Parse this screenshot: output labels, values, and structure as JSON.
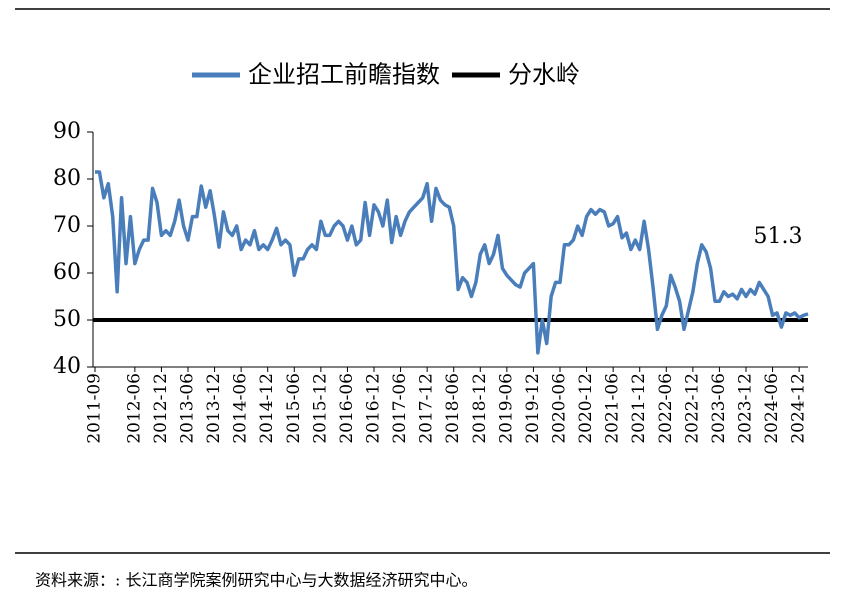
{
  "chart_data": {
    "type": "line",
    "legend": "top",
    "categories": [
      "2011-09",
      null,
      null,
      null,
      null,
      null,
      null,
      null,
      null,
      "2012-06",
      null,
      null,
      null,
      null,
      null,
      "2012-12",
      null,
      null,
      null,
      null,
      null,
      "2013-06",
      null,
      null,
      null,
      null,
      null,
      "2013-12",
      null,
      null,
      null,
      null,
      null,
      "2014-06",
      null,
      null,
      null,
      null,
      null,
      "2014-12",
      null,
      null,
      null,
      null,
      null,
      "2015-06",
      null,
      null,
      null,
      null,
      null,
      "2015-12",
      null,
      null,
      null,
      null,
      null,
      "2016-06",
      null,
      null,
      null,
      null,
      null,
      "2016-12",
      null,
      null,
      null,
      null,
      null,
      "2017-06",
      null,
      null,
      null,
      null,
      null,
      "2017-12",
      null,
      null,
      null,
      null,
      null,
      "2018-06",
      null,
      null,
      null,
      null,
      null,
      "2018-12",
      null,
      null,
      null,
      null,
      null,
      "2019-06",
      null,
      null,
      null,
      null,
      null,
      "2019-12",
      null,
      null,
      null,
      null,
      null,
      "2020-06",
      null,
      null,
      null,
      null,
      null,
      "2020-12",
      null,
      null,
      null,
      null,
      null,
      "2021-06",
      null,
      null,
      null,
      null,
      null,
      "2021-12",
      null,
      null,
      null,
      null,
      null,
      "2022-06",
      null,
      null,
      null,
      null,
      null,
      "2022-12",
      null,
      null,
      null,
      null,
      null,
      "2023-06",
      null,
      null,
      null,
      null,
      null,
      "2023-12",
      null,
      null,
      null,
      null,
      null,
      "2024-06",
      null,
      null,
      null,
      null,
      null,
      "2024-12",
      null,
      null
    ],
    "series": [
      {
        "name": "企业招工前瞻指数",
        "color": "#4a7ebb",
        "values": [
          81.5,
          81.5,
          76,
          79,
          72,
          56,
          76,
          62,
          72,
          62,
          65,
          67,
          67,
          78,
          75,
          68,
          69,
          68,
          71,
          75.5,
          70,
          67,
          72,
          72,
          78.5,
          74,
          77.5,
          72,
          65.5,
          73,
          69,
          68,
          70,
          65,
          67,
          66,
          69,
          65,
          66,
          65,
          67,
          69.5,
          66,
          67,
          66,
          59.5,
          63,
          63,
          65,
          66,
          65,
          71,
          68,
          68,
          70,
          71,
          70,
          67,
          70,
          66,
          67,
          75,
          68,
          74.5,
          73,
          70,
          75.5,
          66.5,
          72,
          68,
          71,
          73,
          74,
          75,
          76,
          79,
          71,
          78,
          75.5,
          74.5,
          74,
          70,
          56.5,
          59,
          58,
          55,
          58,
          64,
          66,
          62,
          64,
          68,
          61,
          59.5,
          58.5,
          57.5,
          57,
          60,
          61,
          62,
          43,
          50,
          45,
          55,
          58,
          58,
          66,
          66,
          67,
          70,
          68,
          72,
          73.5,
          72.5,
          73.5,
          73,
          70,
          70.5,
          72,
          67.5,
          68.5,
          65,
          67,
          65,
          71,
          65,
          57,
          48,
          51,
          53,
          59.5,
          57,
          54,
          48,
          52,
          56,
          62,
          66,
          64.5,
          61,
          54,
          54,
          56,
          55,
          55.5,
          54.5,
          56.5,
          55,
          56.5,
          55.5,
          58,
          56.5,
          55,
          51,
          51.5,
          48.5,
          51.5,
          51,
          51.5,
          50.5,
          51,
          51.3
        ]
      }
    ],
    "reference_lines": [
      {
        "name": "分水岭",
        "value": 50,
        "color": "#000000"
      }
    ],
    "annotations": [
      {
        "text": "51.3"
      }
    ],
    "ylim": [
      40,
      90
    ],
    "yticks": [
      40,
      50,
      60,
      70,
      80,
      90
    ],
    "source": "资料来源：: 长江商学院案例研究中心与大数据经济研究中心。"
  }
}
